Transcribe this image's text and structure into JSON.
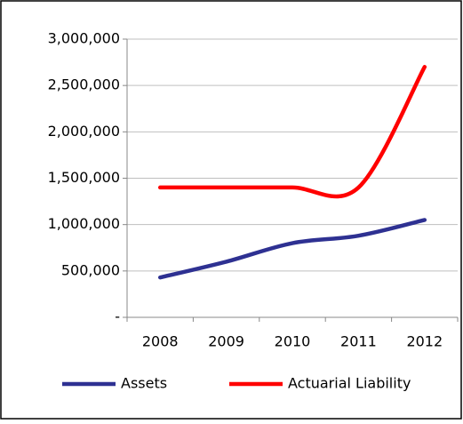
{
  "chart_data": {
    "type": "line",
    "categories": [
      "2008",
      "2009",
      "2010",
      "2011",
      "2012"
    ],
    "series": [
      {
        "name": "Assets",
        "color": "#2e3192",
        "values": [
          430000,
          600000,
          800000,
          880000,
          1050000
        ]
      },
      {
        "name": "Actuarial Liability",
        "color": "#ff0000",
        "values": [
          1400000,
          1400000,
          1400000,
          1400000,
          2700000
        ]
      }
    ],
    "ylim": [
      0,
      3000000
    ],
    "yticks": [
      {
        "value": 0,
        "label": "-"
      },
      {
        "value": 500000,
        "label": "500,000"
      },
      {
        "value": 1000000,
        "label": "1,000,000"
      },
      {
        "value": 1500000,
        "label": "1,500,000"
      },
      {
        "value": 2000000,
        "label": "2,000,000"
      },
      {
        "value": 2500000,
        "label": "2,500,000"
      },
      {
        "value": 3000000,
        "label": "3,000,000"
      }
    ],
    "grid": true,
    "smooth": true,
    "legend": "bottom"
  }
}
